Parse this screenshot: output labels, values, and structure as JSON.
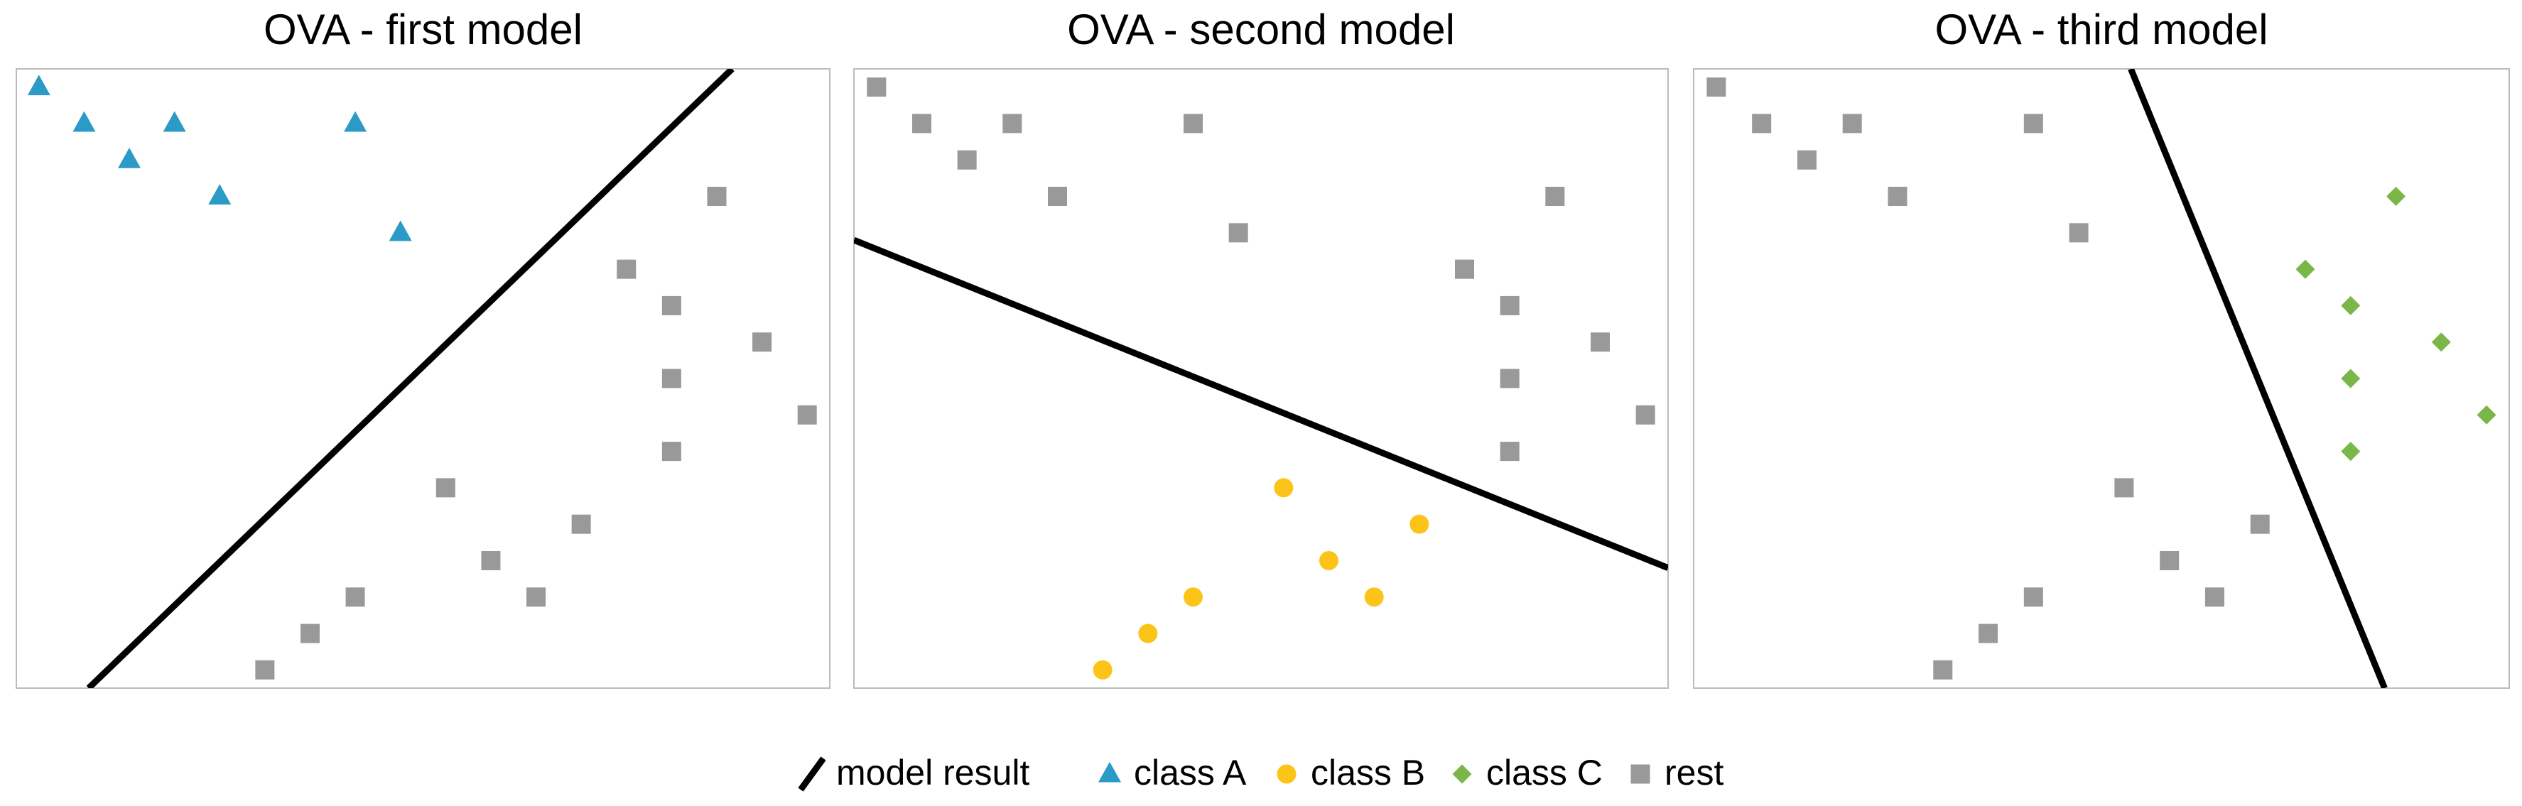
{
  "chart_data": [
    {
      "type": "scatter",
      "title": "OVA - first model",
      "xlim": [
        0,
        18
      ],
      "ylim": [
        0,
        17
      ],
      "series": [
        {
          "name": "model result",
          "marker": "line",
          "color": "#000000",
          "x": [
            1.6,
            15.84
          ],
          "values": [
            0,
            17
          ]
        },
        {
          "name": "class A",
          "marker": "triangle",
          "color": "#2b9ac6",
          "x": [
            0.5,
            1.5,
            2.5,
            3.5,
            4.5,
            7.5,
            8.5
          ],
          "values": [
            16.5,
            15.5,
            14.5,
            15.5,
            13.5,
            15.5,
            12.5
          ]
        },
        {
          "name": "rest",
          "marker": "square",
          "color": "#999999",
          "x": [
            15.5,
            13.5,
            14.5,
            16.5,
            14.5,
            17.5,
            14.5,
            9.5,
            12.5,
            10.5,
            11.5,
            7.5,
            6.5,
            5.5
          ],
          "values": [
            13.5,
            11.5,
            10.5,
            9.5,
            8.5,
            7.5,
            6.5,
            5.5,
            4.5,
            3.5,
            2.5,
            2.5,
            1.5,
            0.5
          ]
        }
      ]
    },
    {
      "type": "scatter",
      "title": "OVA - second model",
      "xlim": [
        0,
        18
      ],
      "ylim": [
        0,
        17
      ],
      "series": [
        {
          "marker": "line",
          "color": "#000000",
          "x": [
            0,
            18
          ],
          "values": [
            12.3,
            3.3
          ]
        },
        {
          "name": "class B",
          "marker": "circle",
          "color": "#fcc419",
          "x": [
            9.5,
            12.5,
            10.5,
            11.5,
            7.5,
            6.5,
            5.5
          ],
          "values": [
            5.5,
            4.5,
            3.5,
            2.5,
            2.5,
            1.5,
            0.5
          ]
        },
        {
          "marker": "square",
          "color": "#999999",
          "x": [
            0.5,
            1.5,
            2.5,
            3.5,
            4.5,
            7.5,
            8.5,
            15.5,
            13.5,
            14.5,
            16.5,
            14.5,
            17.5,
            14.5
          ],
          "values": [
            16.5,
            15.5,
            14.5,
            15.5,
            13.5,
            15.5,
            12.5,
            13.5,
            11.5,
            10.5,
            9.5,
            8.5,
            7.5,
            6.5
          ]
        }
      ]
    },
    {
      "type": "scatter",
      "title": "OVA - third model",
      "xlim": [
        0,
        18
      ],
      "ylim": [
        0,
        17
      ],
      "series": [
        {
          "marker": "line",
          "color": "#000000",
          "x": [
            9.65,
            15.25
          ],
          "values": [
            17,
            0
          ]
        },
        {
          "name": "class C",
          "marker": "diamond",
          "color": "#7ab648",
          "x": [
            15.5,
            13.5,
            14.5,
            16.5,
            14.5,
            17.5,
            14.5
          ],
          "values": [
            13.5,
            11.5,
            10.5,
            9.5,
            8.5,
            7.5,
            6.5
          ]
        },
        {
          "marker": "square",
          "color": "#999999",
          "x": [
            0.5,
            1.5,
            2.5,
            3.5,
            4.5,
            7.5,
            8.5,
            9.5,
            12.5,
            10.5,
            11.5,
            7.5,
            6.5,
            5.5
          ],
          "values": [
            16.5,
            15.5,
            14.5,
            15.5,
            13.5,
            15.5,
            12.5,
            5.5,
            4.5,
            3.5,
            2.5,
            2.5,
            1.5,
            0.5
          ]
        }
      ]
    }
  ]
}
